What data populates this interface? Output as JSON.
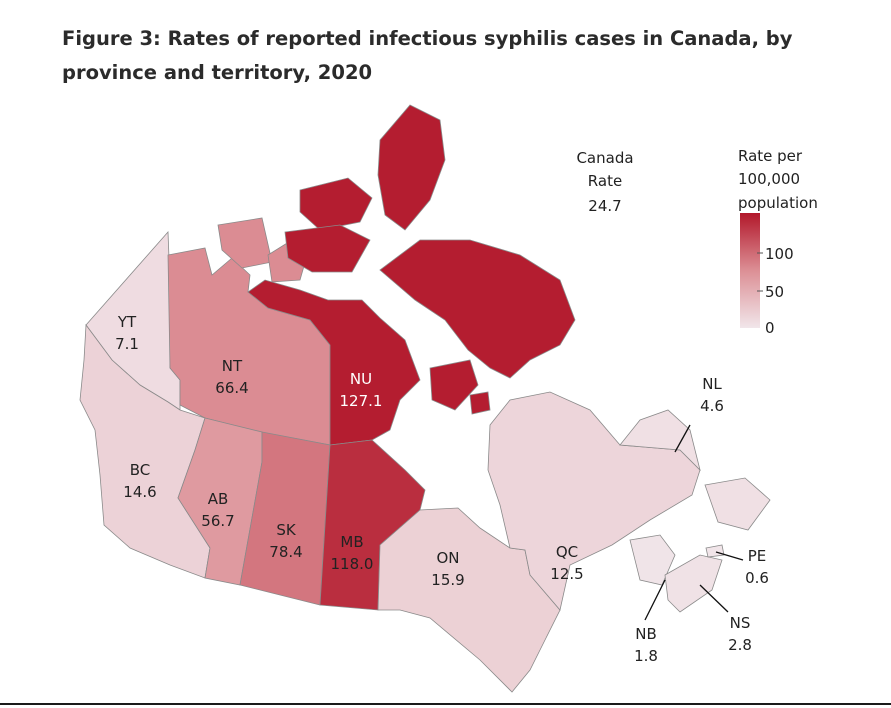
{
  "figure": {
    "title": "Figure 3: Rates of reported infectious syphilis cases in Canada, by province and territory, 2020"
  },
  "national": {
    "line1": "Canada",
    "line2": "Rate",
    "value": "24.7"
  },
  "legend": {
    "title_lines": [
      "Rate per",
      "100,000",
      "population"
    ],
    "ticks": [
      "100",
      "50",
      "0"
    ],
    "range": [
      0,
      130
    ],
    "color_low": "#f1e6ea",
    "color_high": "#b2182b"
  },
  "chart_data": {
    "type": "choropleth",
    "title": "Figure 3: Rates of reported infectious syphilis cases in Canada, by province and territory, 2020",
    "national_rate": 24.7,
    "regions": [
      {
        "code": "YT",
        "rate": 7.1,
        "rate_label": "7.1"
      },
      {
        "code": "NT",
        "rate": 66.4,
        "rate_label": "66.4"
      },
      {
        "code": "NU",
        "rate": 127.1,
        "rate_label": "127.1"
      },
      {
        "code": "BC",
        "rate": 14.6,
        "rate_label": "14.6"
      },
      {
        "code": "AB",
        "rate": 56.7,
        "rate_label": "56.7"
      },
      {
        "code": "SK",
        "rate": 78.4,
        "rate_label": "78.4"
      },
      {
        "code": "MB",
        "rate": 118.0,
        "rate_label": "118.0"
      },
      {
        "code": "ON",
        "rate": 15.9,
        "rate_label": "15.9"
      },
      {
        "code": "QC",
        "rate": 12.5,
        "rate_label": "12.5"
      },
      {
        "code": "NL",
        "rate": 4.6,
        "rate_label": "4.6"
      },
      {
        "code": "NB",
        "rate": 1.8,
        "rate_label": "1.8"
      },
      {
        "code": "NS",
        "rate": 2.8,
        "rate_label": "2.8"
      },
      {
        "code": "PE",
        "rate": 0.6,
        "rate_label": "0.6"
      }
    ]
  }
}
